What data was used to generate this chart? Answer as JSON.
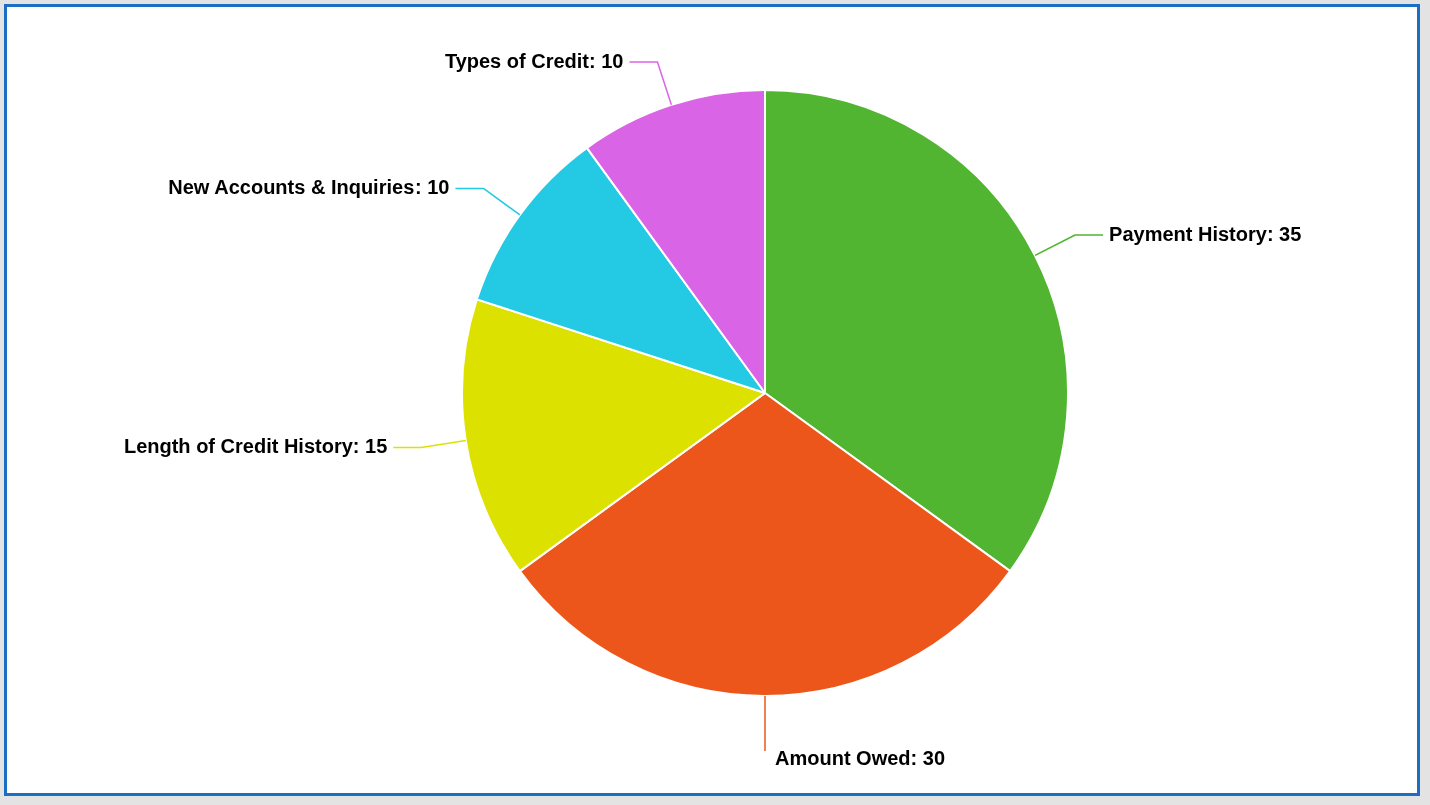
{
  "chart_data": {
    "type": "pie",
    "categories": [
      "Payment History",
      "Amount Owed",
      "Length of Credit History",
      "New Accounts & Inquiries",
      "Types of Credit"
    ],
    "values": [
      35,
      30,
      15,
      10,
      10
    ],
    "value_labels": [
      ": 35",
      ": 30",
      ": 15",
      ": 10",
      ": 10"
    ],
    "colors": [
      "#52b531",
      "#ec561b",
      "#dde100",
      "#24c9e3",
      "#da64e6"
    ],
    "legend": false
  }
}
